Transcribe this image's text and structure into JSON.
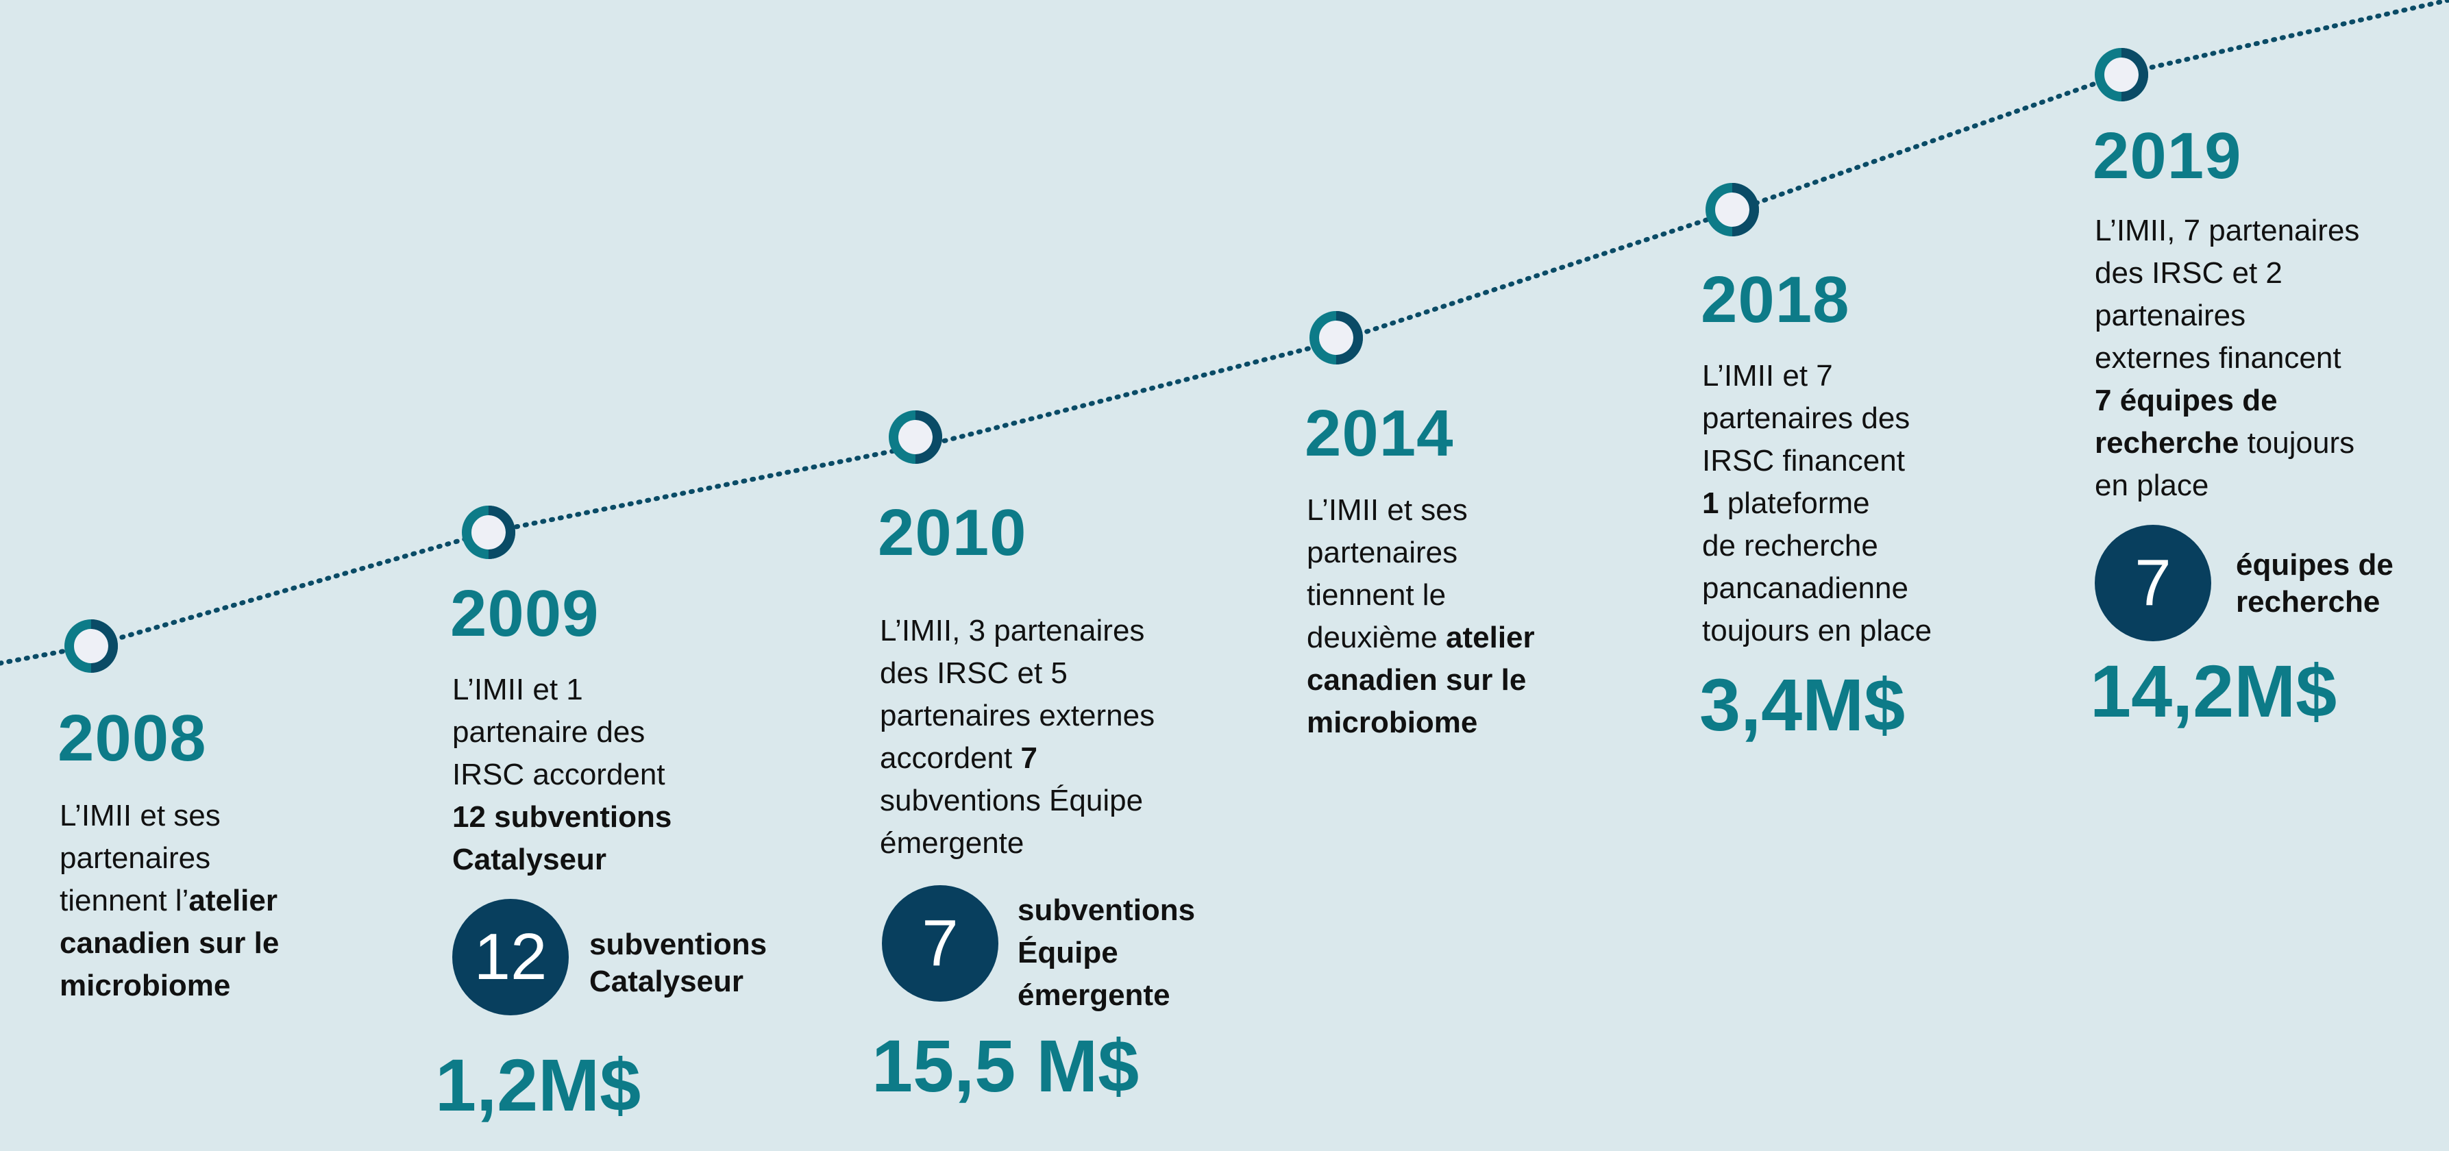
{
  "colors": {
    "background": "#dae8ec",
    "teal": "#0d7b88",
    "navy": "#083f5e",
    "text": "#111111"
  },
  "milestones": [
    {
      "year": "2008",
      "desc_parts": [
        {
          "t": "L’IMII et ses",
          "b": false
        },
        {
          "br": true
        },
        {
          "t": "partenaires",
          "b": false
        },
        {
          "br": true
        },
        {
          "t": "tiennent l’",
          "b": false
        },
        {
          "t": "atelier",
          "b": true
        },
        {
          "br": true
        },
        {
          "t": "canadien sur le",
          "b": true
        },
        {
          "br": true
        },
        {
          "t": "microbiome",
          "b": true
        }
      ]
    },
    {
      "year": "2009",
      "desc_parts": [
        {
          "t": "L’IMII et 1",
          "b": false
        },
        {
          "br": true
        },
        {
          "t": "partenaire des",
          "b": false
        },
        {
          "br": true
        },
        {
          "t": "IRSC accordent",
          "b": false
        },
        {
          "br": true
        },
        {
          "t": "12 subventions",
          "b": true
        },
        {
          "br": true
        },
        {
          "t": "Catalyseur",
          "b": true
        }
      ],
      "badge_number": "12",
      "badge_label_line1": "subventions",
      "badge_label_line2": "Catalyseur",
      "amount": "1,2M$"
    },
    {
      "year": "2010",
      "desc_parts": [
        {
          "t": "L’IMII, 3 partenaires",
          "b": false
        },
        {
          "br": true
        },
        {
          "t": "des IRSC et 5",
          "b": false
        },
        {
          "br": true
        },
        {
          "t": "partenaires externes",
          "b": false
        },
        {
          "br": true
        },
        {
          "t": "accordent ",
          "b": false
        },
        {
          "t": "7",
          "b": true
        },
        {
          "br": true
        },
        {
          "t": "subventions Équipe",
          "b": false
        },
        {
          "br": true
        },
        {
          "t": "émergente",
          "b": false
        }
      ],
      "badge_number": "7",
      "badge_label_line1": "subventions",
      "badge_label_line2": "Équipe",
      "badge_label_line3": "émergente",
      "amount": "15,5 M$"
    },
    {
      "year": "2014",
      "desc_parts": [
        {
          "t": "L’IMII et ses",
          "b": false
        },
        {
          "br": true
        },
        {
          "t": "partenaires",
          "b": false
        },
        {
          "br": true
        },
        {
          "t": "tiennent le",
          "b": false
        },
        {
          "br": true
        },
        {
          "t": "deuxième ",
          "b": false
        },
        {
          "t": "atelier",
          "b": true
        },
        {
          "br": true
        },
        {
          "t": "canadien sur le",
          "b": true
        },
        {
          "br": true
        },
        {
          "t": "microbiome",
          "b": true
        }
      ]
    },
    {
      "year": "2018",
      "desc_parts": [
        {
          "t": "L’IMII et 7",
          "b": false
        },
        {
          "br": true
        },
        {
          "t": "partenaires des",
          "b": false
        },
        {
          "br": true
        },
        {
          "t": "IRSC financent",
          "b": false
        },
        {
          "br": true
        },
        {
          "t": "1",
          "b": true
        },
        {
          "t": " plateforme",
          "b": false
        },
        {
          "br": true
        },
        {
          "t": "de recherche",
          "b": false
        },
        {
          "br": true
        },
        {
          "t": "pancanadienne",
          "b": false
        },
        {
          "br": true
        },
        {
          "t": "toujours en place",
          "b": false
        }
      ],
      "amount": "3,4M$"
    },
    {
      "year": "2019",
      "desc_parts": [
        {
          "t": "L’IMII, 7 partenaires",
          "b": false
        },
        {
          "br": true
        },
        {
          "t": "des IRSC et 2",
          "b": false
        },
        {
          "br": true
        },
        {
          "t": "partenaires",
          "b": false
        },
        {
          "br": true
        },
        {
          "t": "externes financent",
          "b": false
        },
        {
          "br": true
        },
        {
          "t": "7 équipes de",
          "b": true
        },
        {
          "br": true
        },
        {
          "t": "recherche",
          "b": true
        },
        {
          "t": " toujours",
          "b": false
        },
        {
          "br": true
        },
        {
          "t": "en place",
          "b": false
        }
      ],
      "badge_number": "7",
      "badge_label_line1": "équipes de",
      "badge_label_line2": "recherche",
      "amount": "14,2M$"
    }
  ]
}
